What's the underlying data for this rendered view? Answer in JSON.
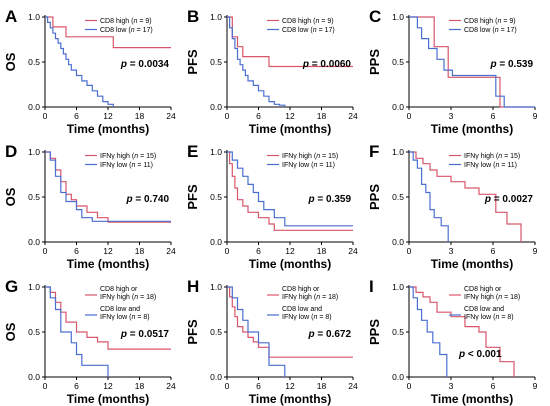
{
  "colors": {
    "high": "#d8566a",
    "low": "#4a6fd0"
  },
  "chart_data": [
    {
      "type": "line",
      "step": true,
      "letter": "A",
      "ylabel": "OS",
      "xlabel": "Time (months)",
      "xlim": [
        0,
        24
      ],
      "ylim": [
        0,
        1.0
      ],
      "xticks": [
        "0",
        "6",
        "12",
        "18",
        "24"
      ],
      "yticks": [
        "0.0",
        "0.5",
        "1.0"
      ],
      "legend": [
        {
          "label": "CD8 high (",
          "n": "9"
        },
        {
          "label": "CD8 low (",
          "n": "17"
        }
      ],
      "pvalue": "0.0034",
      "pvalue_anchor": "right-middle",
      "series": [
        {
          "name": "CD8 high (n = 9)",
          "x": [
            0,
            1.5,
            4,
            13,
            24
          ],
          "y": [
            1.0,
            0.89,
            0.78,
            0.66,
            0.66
          ]
        },
        {
          "name": "CD8 low (n = 17)",
          "x": [
            0,
            0.5,
            1,
            1.5,
            2,
            2.5,
            3,
            3.5,
            4,
            4.5,
            5,
            6,
            7,
            8,
            9,
            10,
            11,
            12,
            13
          ],
          "y": [
            1.0,
            0.94,
            0.88,
            0.82,
            0.76,
            0.71,
            0.65,
            0.59,
            0.53,
            0.47,
            0.41,
            0.35,
            0.29,
            0.24,
            0.18,
            0.12,
            0.06,
            0.03,
            0.0
          ]
        }
      ]
    },
    {
      "type": "line",
      "step": true,
      "letter": "B",
      "ylabel": "PFS",
      "xlabel": "Time (months)",
      "xlim": [
        0,
        24
      ],
      "ylim": [
        0,
        1.0
      ],
      "xticks": [
        "0",
        "6",
        "12",
        "18",
        "24"
      ],
      "yticks": [
        "0.0",
        "0.5",
        "1.0"
      ],
      "legend": [
        {
          "label": "CD8 high (",
          "n": "9"
        },
        {
          "label": "CD8 low (",
          "n": "17"
        }
      ],
      "pvalue": "0.0060",
      "pvalue_anchor": "right-middle",
      "series": [
        {
          "name": "CD8 high (n = 9)",
          "x": [
            0,
            1,
            2,
            3,
            5,
            8,
            24
          ],
          "y": [
            1.0,
            0.78,
            0.67,
            0.56,
            0.56,
            0.45,
            0.45
          ]
        },
        {
          "name": "CD8 low (n = 17)",
          "x": [
            0,
            0.5,
            1,
            1.5,
            2,
            2.5,
            3,
            3.5,
            4,
            5,
            6,
            7,
            8,
            9,
            10,
            11
          ],
          "y": [
            1.0,
            0.88,
            0.76,
            0.65,
            0.53,
            0.47,
            0.41,
            0.35,
            0.29,
            0.24,
            0.18,
            0.12,
            0.06,
            0.03,
            0.02,
            0.0
          ]
        }
      ]
    },
    {
      "type": "line",
      "step": true,
      "letter": "C",
      "ylabel": "PPS",
      "xlabel": "Time (months)",
      "xlim": [
        0,
        9
      ],
      "ylim": [
        0,
        1.0
      ],
      "xticks": [
        "0",
        "3",
        "6",
        "9"
      ],
      "yticks": [
        "0.0",
        "0.5",
        "1.0"
      ],
      "legend": [
        {
          "label": "CD8 high (",
          "n": "9"
        },
        {
          "label": "CD8 low (",
          "n": "17"
        }
      ],
      "pvalue": "0.539",
      "pvalue_anchor": "right-middle",
      "series": [
        {
          "name": "CD8 high (n = 9)",
          "x": [
            0,
            1.8,
            2.8,
            6.5,
            9
          ],
          "y": [
            1.0,
            0.67,
            0.33,
            0.0,
            0.0
          ]
        },
        {
          "name": "CD8 low (n = 17)",
          "x": [
            0,
            0.6,
            0.9,
            1.4,
            2,
            2.5,
            3.1,
            5.5,
            6.2,
            6.8,
            9
          ],
          "y": [
            1.0,
            0.88,
            0.76,
            0.65,
            0.53,
            0.41,
            0.35,
            0.35,
            0.12,
            0.0,
            0.0
          ]
        }
      ]
    },
    {
      "type": "line",
      "step": true,
      "letter": "D",
      "ylabel": "OS",
      "xlabel": "Time (months)",
      "xlim": [
        0,
        24
      ],
      "ylim": [
        0,
        1.0
      ],
      "xticks": [
        "0",
        "6",
        "12",
        "18",
        "24"
      ],
      "yticks": [
        "0.0",
        "0.5",
        "1.0"
      ],
      "legend": [
        {
          "label": "IFNγ high (",
          "n": "15"
        },
        {
          "label": "IFNγ low (",
          "n": "11"
        }
      ],
      "pvalue": "0.740",
      "pvalue_anchor": "right-middle",
      "series": [
        {
          "name": "IFNγ high (n = 15)",
          "x": [
            0,
            1,
            2,
            3,
            4,
            5,
            6,
            8,
            10,
            12,
            24
          ],
          "y": [
            1.0,
            0.93,
            0.8,
            0.67,
            0.53,
            0.47,
            0.4,
            0.33,
            0.27,
            0.22,
            0.22
          ]
        },
        {
          "name": "IFNγ low (n = 11)",
          "x": [
            0,
            1,
            2,
            3,
            4,
            6,
            7,
            9,
            18,
            24
          ],
          "y": [
            1.0,
            0.91,
            0.73,
            0.55,
            0.45,
            0.36,
            0.27,
            0.23,
            0.23,
            0.23
          ]
        }
      ]
    },
    {
      "type": "line",
      "step": true,
      "letter": "E",
      "ylabel": "PFS",
      "xlabel": "Time (months)",
      "xlim": [
        0,
        24
      ],
      "ylim": [
        0,
        1.0
      ],
      "xticks": [
        "0",
        "6",
        "12",
        "18",
        "24"
      ],
      "yticks": [
        "0.0",
        "0.5",
        "1.0"
      ],
      "legend": [
        {
          "label": "IFNγ high (",
          "n": "15"
        },
        {
          "label": "IFNγ low (",
          "n": "11"
        }
      ],
      "pvalue": "0.359",
      "pvalue_anchor": "right-middle",
      "series": [
        {
          "name": "IFNγ high (n = 15)",
          "x": [
            0,
            0.5,
            1,
            1.5,
            2,
            3,
            4,
            6,
            8,
            9,
            24
          ],
          "y": [
            1.0,
            0.87,
            0.73,
            0.6,
            0.47,
            0.4,
            0.33,
            0.27,
            0.2,
            0.13,
            0.13
          ]
        },
        {
          "name": "IFNγ low (n = 11)",
          "x": [
            0,
            1,
            2,
            3,
            4,
            5,
            6,
            7,
            9,
            11,
            24
          ],
          "y": [
            1.0,
            0.91,
            0.82,
            0.73,
            0.64,
            0.55,
            0.45,
            0.36,
            0.27,
            0.18,
            0.18
          ]
        }
      ]
    },
    {
      "type": "line",
      "step": true,
      "letter": "F",
      "ylabel": "PPS",
      "xlabel": "Time (months)",
      "xlim": [
        0,
        9
      ],
      "ylim": [
        0,
        1.0
      ],
      "xticks": [
        "0",
        "3",
        "6",
        "9"
      ],
      "yticks": [
        "0.0",
        "0.5",
        "1.0"
      ],
      "legend": [
        {
          "label": "IFNγ high (",
          "n": "15"
        },
        {
          "label": "IFNγ low (",
          "n": "11"
        }
      ],
      "pvalue": "0.0027",
      "pvalue_anchor": "right-middle",
      "series": [
        {
          "name": "IFNγ high (n = 15)",
          "x": [
            0,
            0.5,
            1,
            1.5,
            2,
            3,
            4,
            5,
            6.2,
            7,
            8
          ],
          "y": [
            1.0,
            0.93,
            0.87,
            0.8,
            0.73,
            0.67,
            0.6,
            0.53,
            0.33,
            0.2,
            0.0
          ]
        },
        {
          "name": "IFNγ low (n = 11)",
          "x": [
            0,
            0.3,
            0.6,
            0.9,
            1.2,
            1.5,
            1.8,
            2.3,
            2.8
          ],
          "y": [
            1.0,
            0.91,
            0.82,
            0.64,
            0.55,
            0.36,
            0.27,
            0.18,
            0.0
          ]
        }
      ]
    },
    {
      "type": "line",
      "step": true,
      "letter": "G",
      "ylabel": "OS",
      "xlabel": "Time (months)",
      "xlim": [
        0,
        24
      ],
      "ylim": [
        0,
        1.0
      ],
      "xticks": [
        "0",
        "6",
        "12",
        "18",
        "24"
      ],
      "yticks": [
        "0.0",
        "0.5",
        "1.0"
      ],
      "legend": [
        {
          "line1": "CD8 high or",
          "line2": "IFNγ high (",
          "n": "18"
        },
        {
          "line1": "CD8 low and",
          "line2": "IFNγ low (",
          "n": "8"
        }
      ],
      "pvalue": "0.0517",
      "pvalue_anchor": "right-middle",
      "series": [
        {
          "name": "CD8 high or IFNγ high (n = 18)",
          "x": [
            0,
            1,
            2,
            3,
            4,
            6,
            8,
            10,
            12,
            24
          ],
          "y": [
            1.0,
            0.94,
            0.83,
            0.72,
            0.61,
            0.5,
            0.44,
            0.39,
            0.31,
            0.31
          ]
        },
        {
          "name": "CD8 low and IFNγ low (n = 8)",
          "x": [
            0,
            1,
            2,
            3,
            5,
            6,
            7,
            12
          ],
          "y": [
            1.0,
            0.88,
            0.75,
            0.5,
            0.38,
            0.25,
            0.13,
            0.0
          ]
        }
      ]
    },
    {
      "type": "line",
      "step": true,
      "letter": "H",
      "ylabel": "PFS",
      "xlabel": "Time (months)",
      "xlim": [
        0,
        24
      ],
      "ylim": [
        0,
        1.0
      ],
      "xticks": [
        "0",
        "6",
        "12",
        "18",
        "24"
      ],
      "yticks": [
        "0.0",
        "0.5",
        "1.0"
      ],
      "legend": [
        {
          "line1": "CD8 high or",
          "line2": "IFNγ high (",
          "n": "18"
        },
        {
          "line1": "CD8 low and",
          "line2": "IFNγ low (",
          "n": "8"
        }
      ],
      "pvalue": "0.672",
      "pvalue_anchor": "right-middle",
      "series": [
        {
          "name": "CD8 high or IFNγ high (n = 18)",
          "x": [
            0,
            0.5,
            1,
            1.5,
            2,
            3,
            4,
            5,
            6,
            8,
            24
          ],
          "y": [
            1.0,
            0.89,
            0.78,
            0.67,
            0.56,
            0.5,
            0.44,
            0.39,
            0.33,
            0.22,
            0.22
          ]
        },
        {
          "name": "CD8 low and IFNγ low (n = 8)",
          "x": [
            0,
            1,
            2,
            3,
            4,
            6,
            8,
            11
          ],
          "y": [
            1.0,
            0.88,
            0.75,
            0.63,
            0.5,
            0.38,
            0.13,
            0.0
          ]
        }
      ]
    },
    {
      "type": "line",
      "step": true,
      "letter": "I",
      "ylabel": "PPS",
      "xlabel": "Time (months)",
      "xlim": [
        0,
        9
      ],
      "ylim": [
        0,
        1.0
      ],
      "xticks": [
        "0",
        "3",
        "6",
        "9"
      ],
      "yticks": [
        "0.0",
        "0.5",
        "1.0"
      ],
      "legend": [
        {
          "line1": "CD8 high or",
          "line2": "IFNγ high (",
          "n": "18"
        },
        {
          "line1": "CD8 low and",
          "line2": "IFNγ low (",
          "n": "8"
        }
      ],
      "pvalue": "< 0.001",
      "pvalue_anchor": "center-lower",
      "series": [
        {
          "name": "CD8 high or IFNγ high (n = 18)",
          "x": [
            0,
            0.5,
            1,
            1.5,
            2,
            3,
            4,
            5,
            5.5,
            6.5,
            7.5
          ],
          "y": [
            1.0,
            0.94,
            0.89,
            0.83,
            0.72,
            0.67,
            0.56,
            0.5,
            0.33,
            0.17,
            0.0
          ]
        },
        {
          "name": "CD8 low and IFNγ low (n = 8)",
          "x": [
            0,
            0.3,
            0.6,
            0.9,
            1.3,
            1.7,
            2.2,
            2.7
          ],
          "y": [
            1.0,
            0.88,
            0.75,
            0.63,
            0.5,
            0.38,
            0.25,
            0.0
          ]
        }
      ]
    }
  ]
}
